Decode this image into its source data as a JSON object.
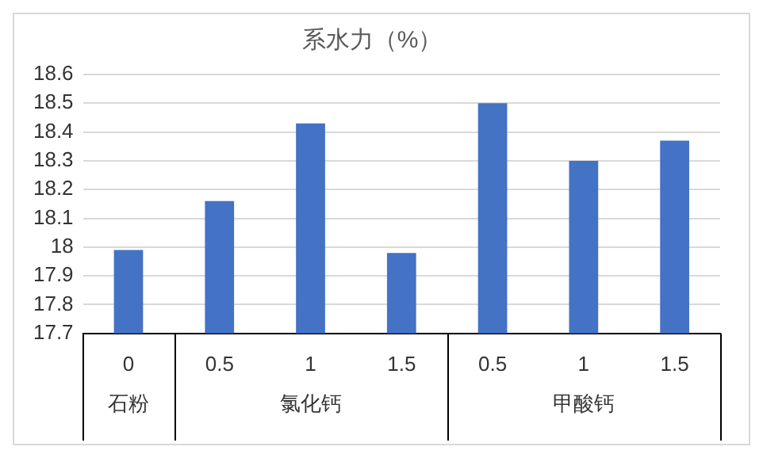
{
  "chart_data": {
    "type": "bar",
    "title": "系水力（%）",
    "categories": [
      "0",
      "0.5",
      "1",
      "1.5",
      "0.5",
      "1",
      "1.5"
    ],
    "values": [
      17.99,
      18.16,
      18.43,
      17.98,
      18.5,
      18.3,
      18.37
    ],
    "color": "#4472c4",
    "ylim": [
      17.7,
      18.6
    ],
    "yticks": [
      17.7,
      17.8,
      17.9,
      18,
      18.1,
      18.2,
      18.3,
      18.4,
      18.5,
      18.6
    ],
    "grid": "y",
    "legend": false,
    "annotations": [
      "石粉",
      "氯化钙",
      "甲酸钙"
    ]
  }
}
